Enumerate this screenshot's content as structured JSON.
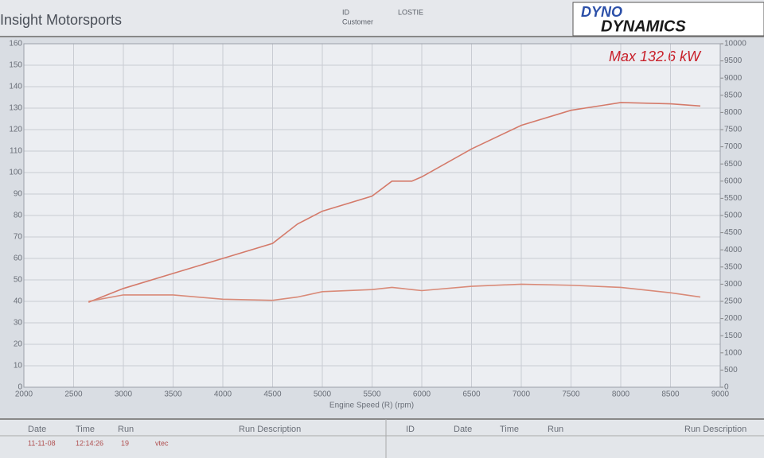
{
  "header": {
    "company": "Insight Motorsports",
    "id_label": "ID",
    "id_value": "LOSTIE",
    "customer_label": "Customer",
    "logo_top": "DYNO",
    "logo_bottom": "DYNAMICS"
  },
  "chart_data": {
    "type": "line",
    "annotation": "Max 132.6 kW",
    "x_label": "Engine Speed (R) (rpm)",
    "x": [
      2650,
      3000,
      3500,
      4000,
      4500,
      4750,
      5000,
      5500,
      5700,
      5900,
      6000,
      6500,
      7000,
      7500,
      8000,
      8500,
      8800
    ],
    "series": [
      {
        "color": "#d47a6a",
        "values": [
          39.6,
          46,
          53,
          60,
          67,
          76,
          82,
          89,
          96,
          96,
          98,
          111,
          122,
          129,
          132.6,
          132,
          131
        ]
      },
      {
        "color": "#d98a78",
        "values": [
          40,
          43,
          43,
          41,
          40.5,
          42,
          44.5,
          45.5,
          46.5,
          45.5,
          45,
          47,
          48,
          47.5,
          46.5,
          44,
          42
        ]
      }
    ],
    "xlim": [
      2000,
      9000
    ],
    "xticks": [
      2000,
      2500,
      3000,
      3500,
      4000,
      4500,
      5000,
      5500,
      6000,
      6500,
      7000,
      7500,
      8000,
      8500,
      9000
    ],
    "ylim": [
      0,
      160
    ],
    "yticks": [
      0,
      10,
      20,
      30,
      40,
      50,
      60,
      70,
      80,
      90,
      100,
      110,
      120,
      130,
      140,
      150,
      160
    ],
    "y2lim": [
      0,
      10000
    ],
    "y2ticks": [
      0,
      500,
      1000,
      1500,
      2000,
      2500,
      3000,
      3500,
      4000,
      4500,
      5000,
      5500,
      6000,
      6500,
      7000,
      7500,
      8000,
      8500,
      9000,
      9500,
      10000
    ],
    "grid": true
  },
  "table": {
    "headers": [
      "Date",
      "Time",
      "Run",
      "Run Description",
      "ID",
      "Date",
      "Time",
      "Run",
      "Run Description"
    ],
    "row": [
      "11-11-08",
      "12:14:26",
      "19",
      "vtec"
    ]
  }
}
